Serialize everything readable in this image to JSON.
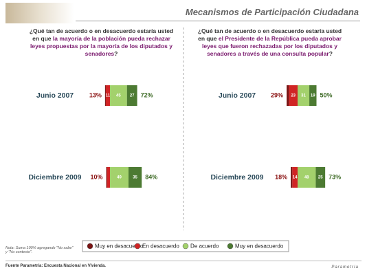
{
  "header": {
    "title": "Mecanismos de Participación Ciudadana"
  },
  "chart_data": [
    {
      "type": "diverging-bar",
      "question": {
        "lead": "¿Qué tan de acuerdo o en desacuerdo estaría usted en que ",
        "highlight": "la mayoría de la población pueda rechazar leyes propuestas por la mayoría de los diputados y senadores",
        "end": "?"
      },
      "categories": [
        "Junio 2007",
        "Diciembre 2009"
      ],
      "series": [
        {
          "name": "Muy en desacuerdo",
          "color": "#7a1414",
          "values": [
            2,
            2
          ]
        },
        {
          "name": "En desacuerdo",
          "color": "#d02424",
          "values": [
            11,
            8
          ]
        },
        {
          "name": "De acuerdo",
          "color": "#a3d16c",
          "values": [
            45,
            49
          ]
        },
        {
          "name": "Muy en desacuerdo",
          "color": "#4c7a32",
          "values": [
            27,
            35
          ]
        }
      ],
      "disagree_total": {
        "values": [
          13,
          10
        ],
        "value_labels": [
          "13%",
          "10%"
        ]
      },
      "agree_total": {
        "values": [
          72,
          84
        ],
        "value_labels": [
          "72%",
          "84%"
        ]
      }
    },
    {
      "type": "diverging-bar",
      "question": {
        "lead": "¿Qué tan de acuerdo o en desacuerdo estaría usted en que ",
        "highlight": "el Presidente de la República pueda aprobar leyes que fueron rechazadas por los diputados y senadores a través de una consulta popular",
        "end": "?"
      },
      "categories": [
        "Junio 2007",
        "Diciembre 2009"
      ],
      "series": [
        {
          "color": "#7a1414",
          "values": [
            6,
            4
          ]
        },
        {
          "color": "#d02424",
          "values": [
            23,
            14
          ]
        },
        {
          "color": "#a3d16c",
          "values": [
            31,
            48
          ]
        },
        {
          "color": "#4c7a32",
          "values": [
            19,
            25
          ]
        }
      ],
      "disagree_total": {
        "values": [
          29,
          18
        ],
        "value_labels": [
          "29%",
          "18%"
        ]
      },
      "agree_total": {
        "values": [
          50,
          73
        ],
        "value_labels": [
          "50%",
          "73%"
        ]
      }
    }
  ],
  "note": "Nota: Suma 100% agregando \"No sabe\" y \"No contesto\".",
  "source": "Fuente Parametría: Encuesta Nacional en Vivienda.",
  "logo": "Parametría"
}
